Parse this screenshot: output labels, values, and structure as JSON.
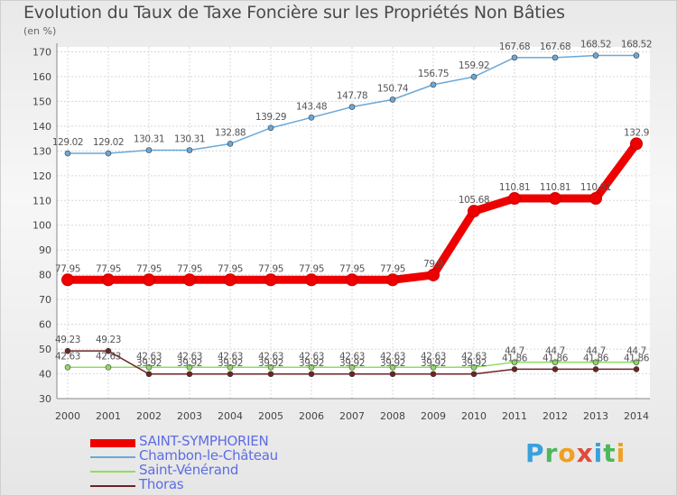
{
  "title": "Evolution du Taux de Taxe Foncière sur les Propriétés Non Bâties",
  "unit_label": "(en %)",
  "logo": {
    "text": "Proxiti",
    "letters": [
      {
        "ch": "P",
        "color": "#3aa0dc"
      },
      {
        "ch": "r",
        "color": "#4bb85a"
      },
      {
        "ch": "o",
        "color": "#f0a020"
      },
      {
        "ch": "x",
        "color": "#e04a3a"
      },
      {
        "ch": "i",
        "color": "#3aa0dc"
      },
      {
        "ch": "t",
        "color": "#4bb85a"
      },
      {
        "ch": "i",
        "color": "#f0a020"
      }
    ]
  },
  "chart_data": {
    "type": "line",
    "title": "Evolution du Taux de Taxe Foncière sur les Propriétés Non Bâties",
    "ylabel": "(en %)",
    "xlabel": "",
    "ylim": [
      30,
      172
    ],
    "yticks": [
      30,
      40,
      50,
      60,
      70,
      80,
      90,
      100,
      110,
      120,
      130,
      140,
      150,
      160,
      170
    ],
    "grid": true,
    "x": [
      "2000",
      "2001",
      "2002",
      "2003",
      "2004",
      "2005",
      "2006",
      "2007",
      "2008",
      "2009",
      "2010",
      "2011",
      "2012",
      "2013",
      "2014"
    ],
    "series": [
      {
        "name": "SAINT-SYMPHORIEN",
        "color": "#ee0000",
        "values": [
          77.95,
          77.95,
          77.95,
          77.95,
          77.95,
          77.95,
          77.95,
          77.95,
          77.95,
          79.9,
          105.68,
          110.81,
          110.81,
          110.81,
          132.9
        ],
        "labels": [
          "77.95",
          "77.95",
          "77.95",
          "77.95",
          "77.95",
          "77.95",
          "77.95",
          "77.95",
          "77.95",
          "79.9",
          "105.68",
          "110.81",
          "110.81",
          "110.81",
          "132.9"
        ]
      },
      {
        "name": "Chambon-le-Château",
        "color": "#6aa8d8",
        "values": [
          129.02,
          129.02,
          130.31,
          130.31,
          132.88,
          139.29,
          143.48,
          147.78,
          150.74,
          156.75,
          159.92,
          167.68,
          167.68,
          168.52,
          168.52
        ],
        "labels": [
          "129.02",
          "129.02",
          "130.31",
          "130.31",
          "132.88",
          "139.29",
          "143.48",
          "147.78",
          "150.74",
          "156.75",
          "159.92",
          "167.68",
          "167.68",
          "168.52",
          "168.52"
        ]
      },
      {
        "name": "Saint-Vénérand",
        "color": "#8fdc60",
        "values": [
          42.63,
          42.63,
          42.63,
          42.63,
          42.63,
          42.63,
          42.63,
          42.63,
          42.63,
          42.63,
          42.63,
          44.7,
          44.7,
          44.7,
          44.7
        ],
        "labels": [
          "42.63",
          "42.63",
          "42.63",
          "42.63",
          "42.63",
          "42.63",
          "42.63",
          "42.63",
          "42.63",
          "42.63",
          "42.63",
          "44.7",
          "44.7",
          "44.7",
          "44.7"
        ]
      },
      {
        "name": "Thoras",
        "color": "#6b2424",
        "values": [
          49.23,
          49.23,
          39.92,
          39.92,
          39.92,
          39.92,
          39.92,
          39.92,
          39.92,
          39.92,
          39.92,
          41.86,
          41.86,
          41.86,
          41.86
        ],
        "labels": [
          "49.23",
          "49.23",
          "39.92",
          "39.92",
          "39.92",
          "39.92",
          "39.92",
          "39.92",
          "39.92",
          "39.92",
          "39.92",
          "41.86",
          "41.86",
          "41.86",
          "41.86"
        ]
      }
    ]
  }
}
